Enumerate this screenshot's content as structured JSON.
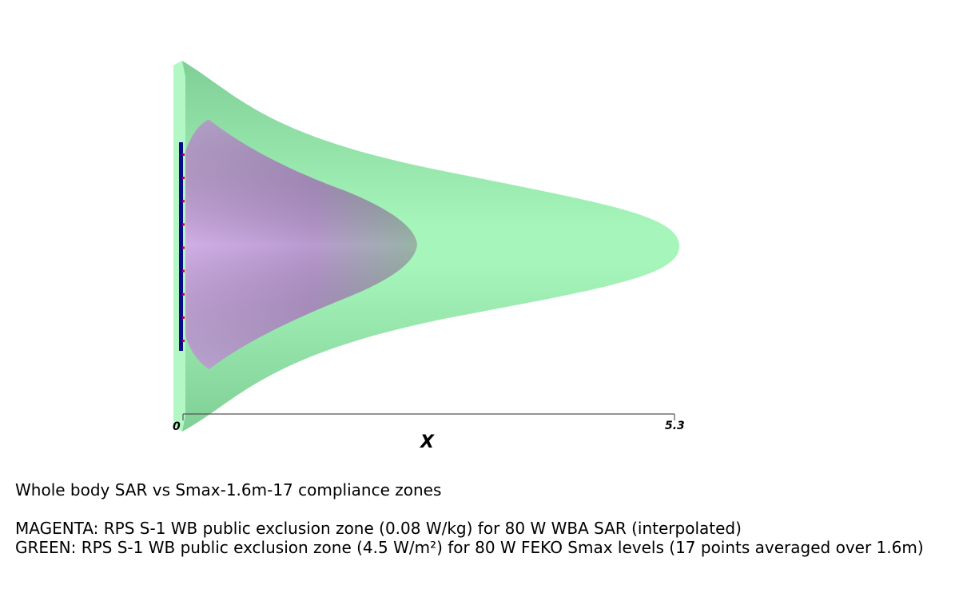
{
  "axis": {
    "title": "X",
    "min_label": "0",
    "max_label": "5.3",
    "range": [
      0,
      5.3
    ]
  },
  "zones": {
    "green": {
      "color": "#9ff2b4",
      "extent_x": 5.3
    },
    "magenta": {
      "color": "#c8a6dc",
      "extent_x": 2.5
    }
  },
  "antenna": {
    "color": "#0a0a8c",
    "marker_color": "#b00050",
    "marker_count": 9
  },
  "captions": {
    "title": "Whole body SAR vs Smax-1.6m-17 compliance zones",
    "magenta": "MAGENTA: RPS S-1 WB public exclusion zone (0.08 W/kg) for 80 W WBA SAR (interpolated)",
    "green": "GREEN: RPS S-1 WB public exclusion zone (4.5 W/m²) for 80 W FEKO Smax levels (17 points averaged over 1.6m)"
  }
}
